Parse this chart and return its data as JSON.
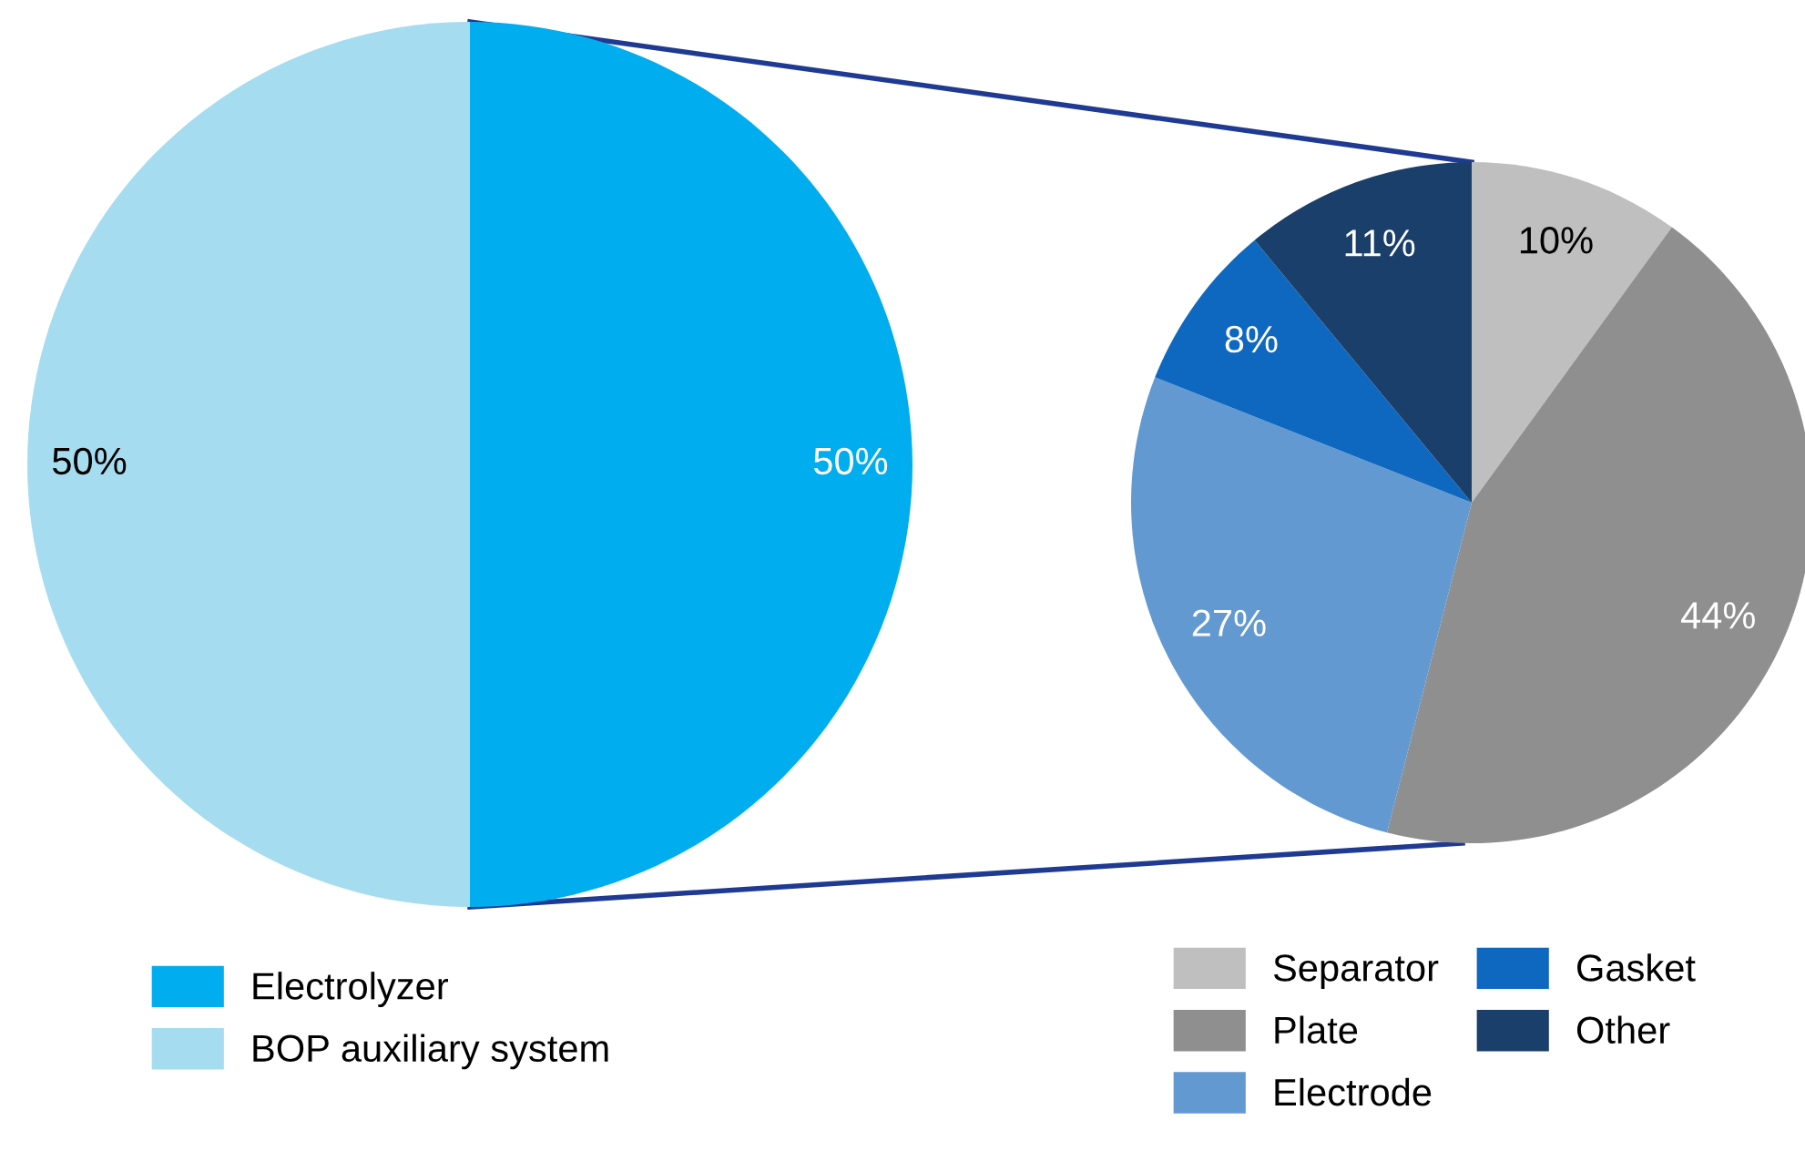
{
  "chart_data": [
    {
      "type": "pie",
      "categories": [
        "Electrolyzer",
        "BOP auxiliary system"
      ],
      "values": [
        50,
        50
      ],
      "colors": [
        "#00aeef",
        "#a6dcf0"
      ],
      "value_labels": [
        "50%",
        "50%"
      ],
      "legend": "bottom left"
    },
    {
      "type": "pie",
      "categories": [
        "Separator",
        "Plate",
        "Electrode",
        "Gasket",
        "Other"
      ],
      "values": [
        10,
        44,
        27,
        8,
        11
      ],
      "colors": [
        "#bfbfbf",
        "#8f8f8f",
        "#6399d1",
        "#0f68c0",
        "#1a3f6b"
      ],
      "value_labels": [
        "10%",
        "44%",
        "27%",
        "8%",
        "11%"
      ],
      "legend": "bottom"
    }
  ]
}
